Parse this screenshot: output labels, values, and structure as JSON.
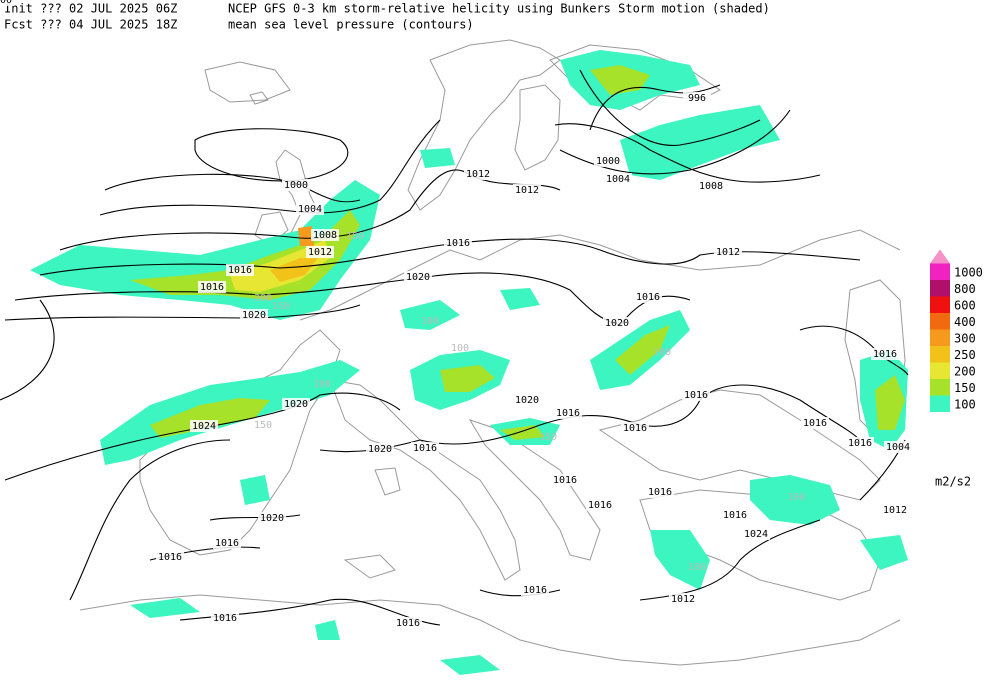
{
  "header": {
    "init": "Init  ??? 02 JUL 2025 06Z",
    "title": "NCEP GFS 0-3 km storm-relative helicity using Bunkers Storm motion (shaded)",
    "forecast": "Fcst ??? 04 JUL 2025 18Z",
    "subtitle": "mean sea level pressure (contours)"
  },
  "legend": {
    "unit": "m2/s2",
    "levels": [
      {
        "label": "100",
        "color": "#3cf5c0"
      },
      {
        "label": "150",
        "color": "#a6e22a"
      },
      {
        "label": "200",
        "color": "#e6e633"
      },
      {
        "label": "250",
        "color": "#f2c21a"
      },
      {
        "label": "300",
        "color": "#f59a1c"
      },
      {
        "label": "400",
        "color": "#f26a10"
      },
      {
        "label": "600",
        "color": "#f01010"
      },
      {
        "label": "800",
        "color": "#b0106a"
      },
      {
        "label": "1000",
        "color": "#f022c0"
      }
    ],
    "top_color": "#f590c8"
  },
  "isobar_labels": [
    "996",
    "1000",
    "1000",
    "1004",
    "1004",
    "1008",
    "1008",
    "1012",
    "1012",
    "1012",
    "1012",
    "1016",
    "1016",
    "1016",
    "1016",
    "1016",
    "1016",
    "1016",
    "1016",
    "1016",
    "1016",
    "1016",
    "1016",
    "1016",
    "1016",
    "1016",
    "1016",
    "1016",
    "1016",
    "1016",
    "1016",
    "1020",
    "1020",
    "1020",
    "1020",
    "1020",
    "1020",
    "1020",
    "1024",
    "1024",
    "1012",
    "1012",
    "1004",
    "1000"
  ],
  "helicity_labels": [
    "100",
    "150",
    "100",
    "200",
    "150",
    "100",
    "100",
    "100",
    "150",
    "100",
    "150"
  ]
}
